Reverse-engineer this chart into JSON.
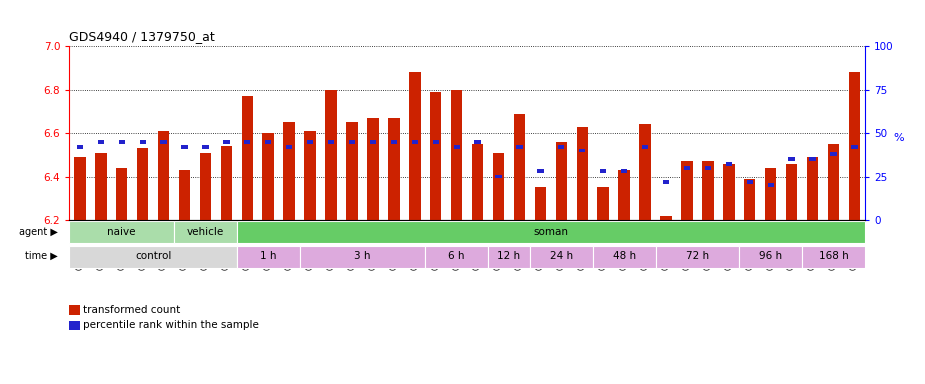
{
  "title": "GDS4940 / 1379750_at",
  "samples": [
    "GSM338857",
    "GSM338858",
    "GSM338859",
    "GSM338862",
    "GSM338864",
    "GSM338877",
    "GSM338880",
    "GSM338860",
    "GSM338861",
    "GSM338863",
    "GSM338865",
    "GSM338866",
    "GSM338867",
    "GSM338868",
    "GSM338869",
    "GSM338870",
    "GSM338871",
    "GSM338872",
    "GSM338873",
    "GSM338874",
    "GSM338875",
    "GSM338876",
    "GSM338878",
    "GSM338879",
    "GSM338881",
    "GSM338882",
    "GSM338883",
    "GSM338884",
    "GSM338885",
    "GSM338886",
    "GSM338887",
    "GSM338888",
    "GSM338889",
    "GSM338890",
    "GSM338891",
    "GSM338892",
    "GSM338893",
    "GSM338894"
  ],
  "bar_values": [
    6.49,
    6.51,
    6.44,
    6.53,
    6.61,
    6.43,
    6.51,
    6.54,
    6.77,
    6.6,
    6.65,
    6.61,
    6.8,
    6.65,
    6.67,
    6.67,
    6.88,
    6.79,
    6.8,
    6.55,
    6.51,
    6.69,
    6.35,
    6.56,
    6.63,
    6.35,
    6.43,
    6.64,
    6.22,
    6.47,
    6.47,
    6.46,
    6.39,
    6.44,
    6.46,
    6.49,
    6.55,
    6.88
  ],
  "percentile_values": [
    42,
    45,
    45,
    45,
    45,
    42,
    42,
    45,
    45,
    45,
    42,
    45,
    45,
    45,
    45,
    45,
    45,
    45,
    42,
    45,
    25,
    42,
    28,
    42,
    40,
    28,
    28,
    42,
    22,
    30,
    30,
    32,
    22,
    20,
    35,
    35,
    38,
    42
  ],
  "ylim_left": [
    6.2,
    7.0
  ],
  "ylim_right": [
    0,
    100
  ],
  "yticks_left": [
    6.2,
    6.4,
    6.6,
    6.8,
    7.0
  ],
  "yticks_right": [
    0,
    25,
    50,
    75,
    100
  ],
  "bar_color": "#cc2200",
  "percentile_color": "#2222cc",
  "background_color": "#ffffff",
  "agent_groups": [
    {
      "label": "naive",
      "start": 0,
      "end": 5,
      "color": "#aaddaa"
    },
    {
      "label": "vehicle",
      "start": 5,
      "end": 8,
      "color": "#aaddaa"
    },
    {
      "label": "soman",
      "start": 8,
      "end": 38,
      "color": "#66cc66"
    }
  ],
  "time_groups": [
    {
      "label": "control",
      "start": 0,
      "end": 8,
      "color": "#d8d8d8"
    },
    {
      "label": "1 h",
      "start": 8,
      "end": 11,
      "color": "#ddaadd"
    },
    {
      "label": "3 h",
      "start": 11,
      "end": 17,
      "color": "#ddaadd"
    },
    {
      "label": "6 h",
      "start": 17,
      "end": 20,
      "color": "#ddaadd"
    },
    {
      "label": "12 h",
      "start": 20,
      "end": 22,
      "color": "#ddaadd"
    },
    {
      "label": "24 h",
      "start": 22,
      "end": 25,
      "color": "#ddaadd"
    },
    {
      "label": "48 h",
      "start": 25,
      "end": 28,
      "color": "#ddaadd"
    },
    {
      "label": "72 h",
      "start": 28,
      "end": 32,
      "color": "#ddaadd"
    },
    {
      "label": "96 h",
      "start": 32,
      "end": 35,
      "color": "#ddaadd"
    },
    {
      "label": "168 h",
      "start": 35,
      "end": 38,
      "color": "#ddaadd"
    }
  ]
}
